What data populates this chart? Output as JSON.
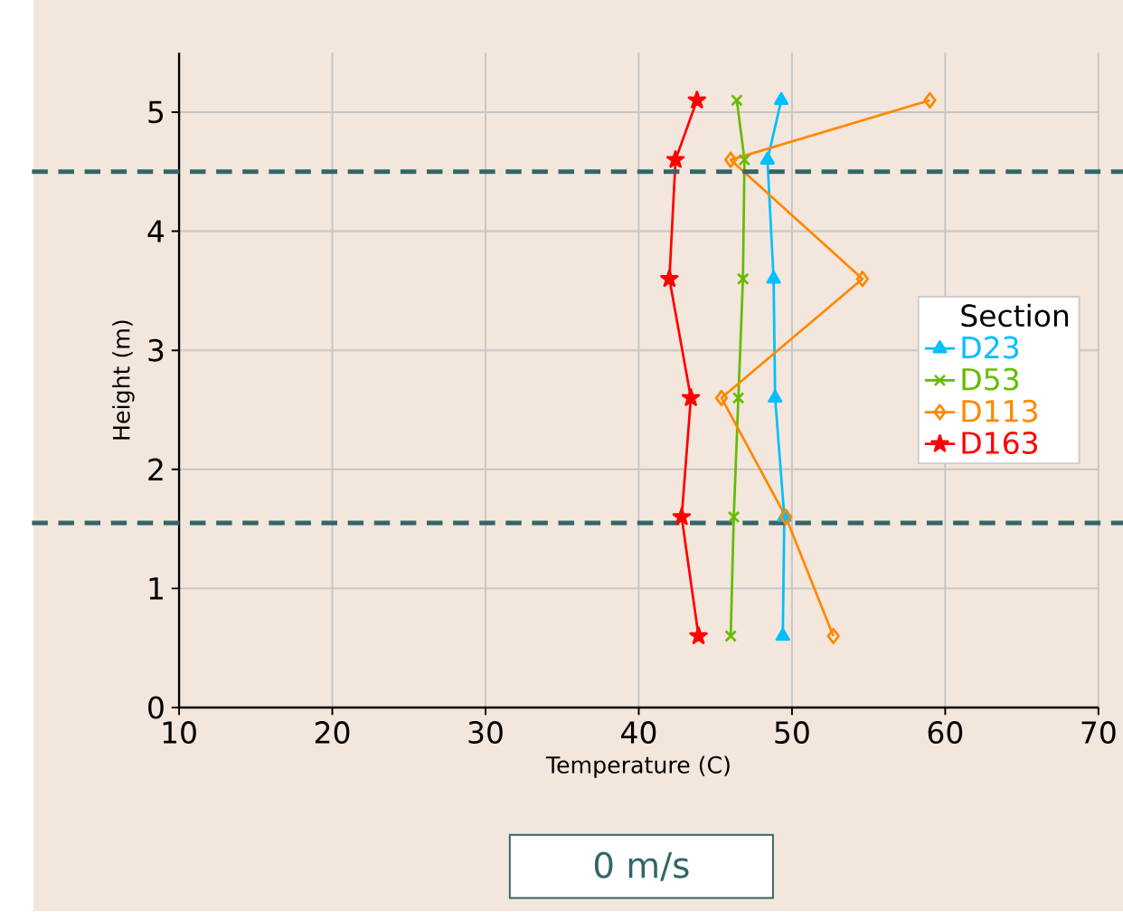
{
  "chart_data": {
    "type": "line",
    "xlabel": "Temperature      (C)",
    "ylabel": "Height     (m)",
    "legend_title": "Section",
    "xlim": [
      10,
      70
    ],
    "ylim": [
      0,
      5.5
    ],
    "xticks": [
      10,
      20,
      30,
      40,
      50,
      60,
      70
    ],
    "yticks": [
      0,
      1,
      2,
      3,
      4,
      5
    ],
    "grid": true,
    "legend": "right",
    "series": [
      {
        "name": "D23",
        "color": "#00bfff",
        "marker": "triangle",
        "x": [
          49.3,
          48.4,
          48.8,
          48.9,
          49.5,
          49.4
        ],
        "values": [
          5.1,
          4.6,
          3.6,
          2.6,
          1.6,
          0.6
        ]
      },
      {
        "name": "D53",
        "color": "#66bb00",
        "marker": "cross",
        "x": [
          46.4,
          46.9,
          46.8,
          46.5,
          46.2,
          46.0
        ],
        "values": [
          5.1,
          4.6,
          3.6,
          2.6,
          1.6,
          0.6
        ]
      },
      {
        "name": "D113",
        "color": "#ff8800",
        "marker": "diamond",
        "x": [
          59.0,
          46.0,
          54.6,
          45.4,
          49.6,
          52.7
        ],
        "values": [
          5.1,
          4.6,
          3.6,
          2.6,
          1.6,
          0.6
        ]
      },
      {
        "name": "D163",
        "color": "#ff0000",
        "marker": "star",
        "x": [
          43.8,
          42.4,
          42.0,
          43.4,
          42.8,
          43.9
        ],
        "values": [
          5.1,
          4.6,
          3.6,
          2.6,
          1.6,
          0.6
        ]
      }
    ],
    "ref_lines": [
      {
        "axis": "y",
        "value": 4.5,
        "color": "#336666",
        "line_style": "dashed"
      },
      {
        "axis": "y",
        "value": 1.55,
        "color": "#336666",
        "line_style": "dashed"
      }
    ],
    "annotations": [
      "0 m/s"
    ]
  }
}
